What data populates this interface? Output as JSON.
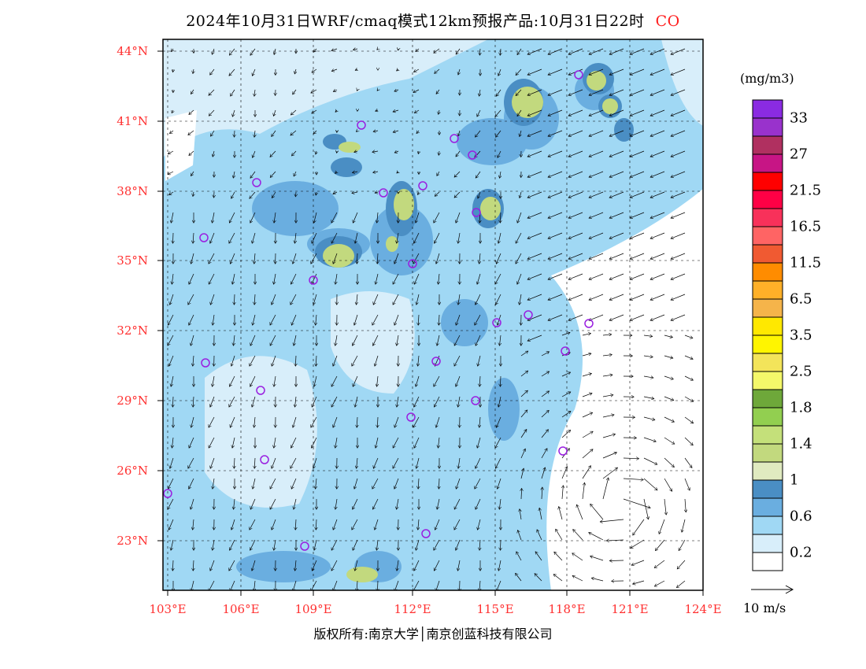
{
  "title": {
    "text": "2024年10月31日WRF/cmaq模式12km预报产品:10月31日22时",
    "species": "CO"
  },
  "lat_labels": [
    "44°N",
    "41°N",
    "38°N",
    "35°N",
    "32°N",
    "29°N",
    "26°N",
    "23°N"
  ],
  "lon_labels": [
    "103°E",
    "106°E",
    "109°E",
    "112°E",
    "115°E",
    "118°E",
    "121°E",
    "124°E"
  ],
  "legend": {
    "unit": "(mg/m3)",
    "colors": [
      "#8a2be2",
      "#9932cc",
      "#b03060",
      "#c71585",
      "#ff0000",
      "#ff0045",
      "#f8315a",
      "#ff6464",
      "#f05a32",
      "#ff8c00",
      "#ffb028",
      "#f5b44a",
      "#ffe800",
      "#fff500",
      "#f3e45a",
      "#f4f86a",
      "#6ea83a",
      "#92cf50",
      "#c4e07a",
      "#c2d97e",
      "#e0eac0",
      "#4a8ec4",
      "#6aaee0",
      "#a0d8f4",
      "#d8eefa",
      "#ffffff"
    ],
    "labels": [
      "33",
      "27",
      "21.5",
      "16.5",
      "11.5",
      "6.5",
      "3.5",
      "2.5",
      "1.8",
      "1.4",
      "1",
      "0.6",
      "0.2"
    ]
  },
  "wind_reference": "10 m/s",
  "copyright": "版权所有:南京大学│南京创蓝科技有限公司"
}
